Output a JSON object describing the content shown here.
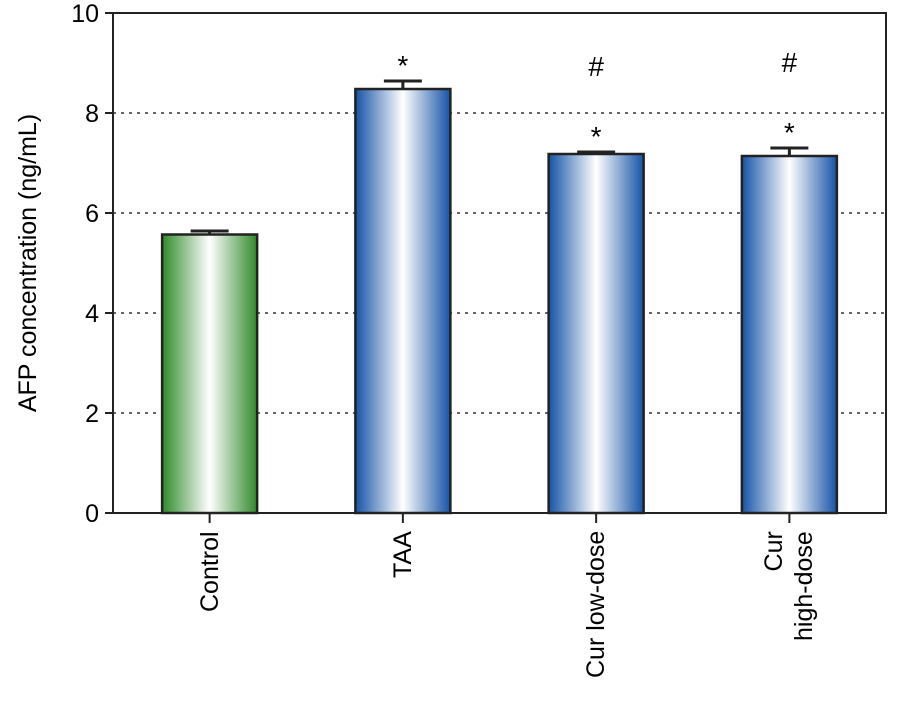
{
  "chart_data": {
    "type": "bar",
    "y_label": "AFP concentration (ng/mL)",
    "categories": [
      "Control",
      "TAA",
      "Cur low-dose",
      "Cur\nhigh-dose"
    ],
    "values": [
      5.57,
      8.48,
      7.18,
      7.14
    ],
    "errors": [
      0.07,
      0.16,
      0.04,
      0.16
    ],
    "colors": [
      "#2f8a2a",
      "#1553a6",
      "#1553a6",
      "#1553a6"
    ],
    "ylim": [
      0,
      10
    ],
    "yticks": [
      0,
      2,
      4,
      6,
      8,
      10
    ],
    "grid": true,
    "annotations": [
      {
        "category": "TAA",
        "labels": [
          "*"
        ]
      },
      {
        "category": "Cur low-dose",
        "labels": [
          "#",
          "*"
        ]
      },
      {
        "category": "Cur\nhigh-dose",
        "labels": [
          "#",
          "*"
        ]
      }
    ]
  }
}
